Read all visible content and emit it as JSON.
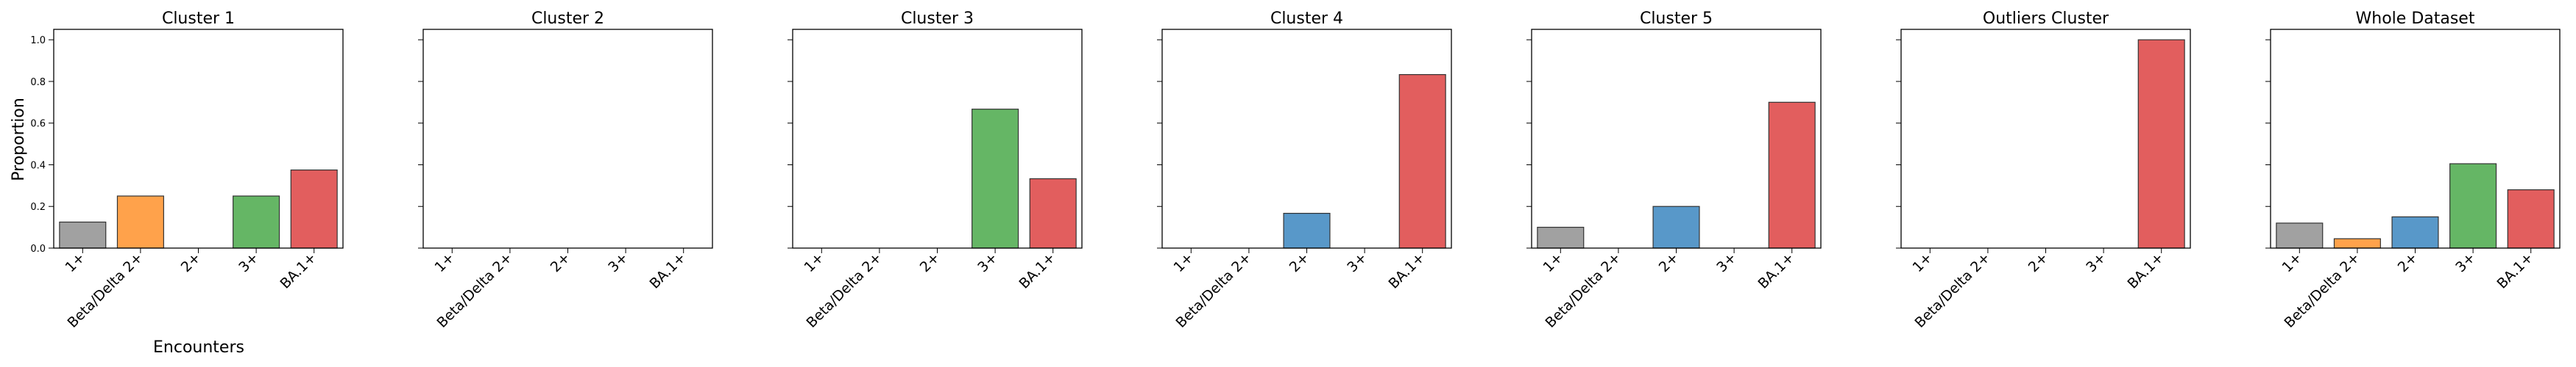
{
  "figure": {
    "ylabel": "Proportion",
    "xlabel": "Encounters"
  },
  "chart_data": [
    {
      "type": "bar",
      "title": "Cluster 1",
      "categories": [
        "1+",
        "Beta/Delta 2+",
        "2+",
        "3+",
        "BA.1+"
      ],
      "values": [
        0.125,
        0.25,
        0.0,
        0.25,
        0.375
      ],
      "ylim": [
        0,
        1.05
      ],
      "xlabel": "Encounters",
      "ylabel": "Proportion"
    },
    {
      "type": "bar",
      "title": "Cluster 2",
      "categories": [
        "1+",
        "Beta/Delta 2+",
        "2+",
        "3+",
        "BA.1+"
      ],
      "values": [
        0.0,
        0.0,
        0.0,
        0.0,
        0.0
      ],
      "ylim": [
        0,
        1.05
      ]
    },
    {
      "type": "bar",
      "title": "Cluster 3",
      "categories": [
        "1+",
        "Beta/Delta 2+",
        "2+",
        "3+",
        "BA.1+"
      ],
      "values": [
        0.0,
        0.0,
        0.0,
        0.667,
        0.333
      ],
      "ylim": [
        0,
        1.05
      ]
    },
    {
      "type": "bar",
      "title": "Cluster 4",
      "categories": [
        "1+",
        "Beta/Delta 2+",
        "2+",
        "3+",
        "BA.1+"
      ],
      "values": [
        0.0,
        0.0,
        0.167,
        0.0,
        0.833
      ],
      "ylim": [
        0,
        1.05
      ]
    },
    {
      "type": "bar",
      "title": "Cluster 5",
      "categories": [
        "1+",
        "Beta/Delta 2+",
        "2+",
        "3+",
        "BA.1+"
      ],
      "values": [
        0.1,
        0.0,
        0.2,
        0.0,
        0.7
      ],
      "ylim": [
        0,
        1.05
      ]
    },
    {
      "type": "bar",
      "title": "Outliers Cluster",
      "categories": [
        "1+",
        "Beta/Delta 2+",
        "2+",
        "3+",
        "BA.1+"
      ],
      "values": [
        0.0,
        0.0,
        0.0,
        0.0,
        1.0
      ],
      "ylim": [
        0,
        1.05
      ]
    },
    {
      "type": "bar",
      "title": "Whole Dataset",
      "categories": [
        "1+",
        "Beta/Delta 2+",
        "2+",
        "3+",
        "BA.1+"
      ],
      "values": [
        0.12,
        0.045,
        0.15,
        0.405,
        0.28
      ],
      "ylim": [
        0,
        1.05
      ]
    }
  ],
  "y_ticks": [
    "0.0",
    "0.2",
    "0.4",
    "0.6",
    "0.8",
    "1.0"
  ],
  "y_tick_values": [
    0.0,
    0.2,
    0.4,
    0.6,
    0.8,
    1.0
  ],
  "colors": {
    "1+": "#999999",
    "Beta/Delta 2+": "#ff9a3c",
    "2+": "#4a8fc4",
    "3+": "#58b058",
    "BA.1+": "#e05050",
    "bar_edge": "#333333",
    "axes": "#000000"
  }
}
